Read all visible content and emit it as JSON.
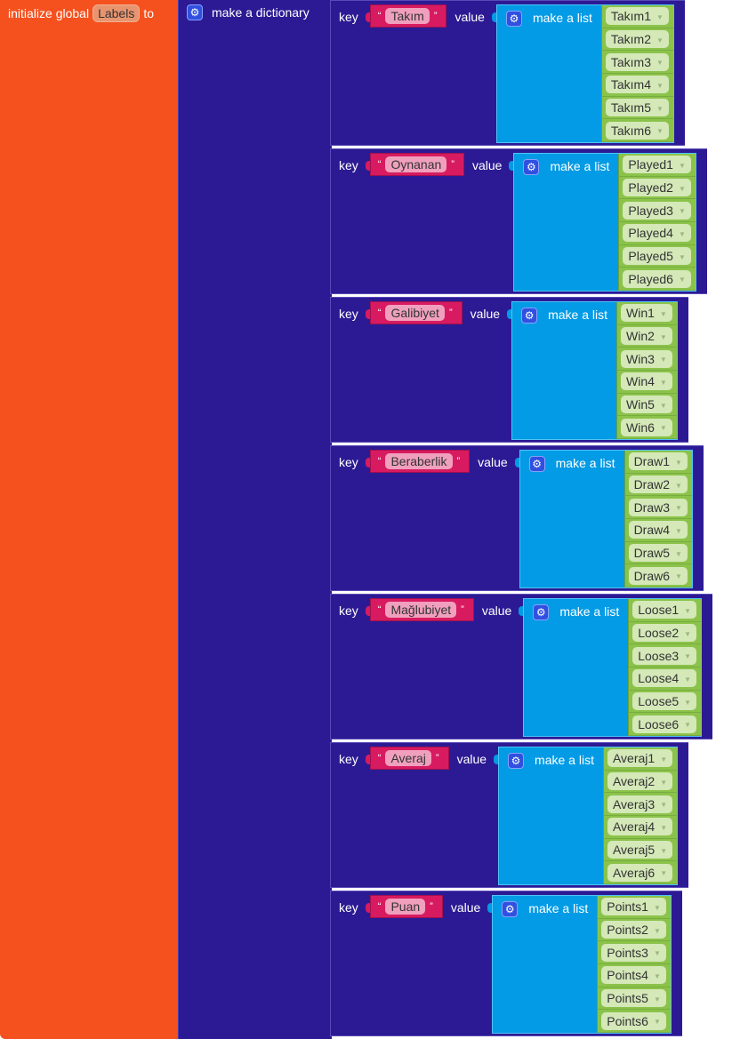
{
  "init": {
    "prefix": "initialize global",
    "var_name": "Labels",
    "suffix": "to"
  },
  "dictionary": {
    "label": "make a dictionary"
  },
  "pair_key_label": "key",
  "pair_value_label": "value",
  "list_label": "make a list",
  "pairs": [
    {
      "key": "Takım",
      "items": [
        "Takım1",
        "Takım2",
        "Takım3",
        "Takım4",
        "Takım5",
        "Takım6"
      ]
    },
    {
      "key": "Oynanan",
      "items": [
        "Played1",
        "Played2",
        "Played3",
        "Played4",
        "Played5",
        "Played6"
      ]
    },
    {
      "key": "Galibiyet",
      "items": [
        "Win1",
        "Win2",
        "Win3",
        "Win4",
        "Win5",
        "Win6"
      ]
    },
    {
      "key": "Beraberlik",
      "items": [
        "Draw1",
        "Draw2",
        "Draw3",
        "Draw4",
        "Draw5",
        "Draw6"
      ]
    },
    {
      "key": "Mağlubiyet",
      "items": [
        "Loose1",
        "Loose2",
        "Loose3",
        "Loose4",
        "Loose5",
        "Loose6"
      ]
    },
    {
      "key": "Averaj",
      "items": [
        "Averaj1",
        "Averaj2",
        "Averaj3",
        "Averaj4",
        "Averaj5",
        "Averaj6"
      ]
    },
    {
      "key": "Puan",
      "items": [
        "Points1",
        "Points2",
        "Points3",
        "Points4",
        "Points5",
        "Points6"
      ]
    }
  ],
  "colors": {
    "init": "#f5511e",
    "dictionary": "#2c1a94",
    "text": "#d81b60",
    "list": "#039be5",
    "component": "#8bc34a"
  }
}
